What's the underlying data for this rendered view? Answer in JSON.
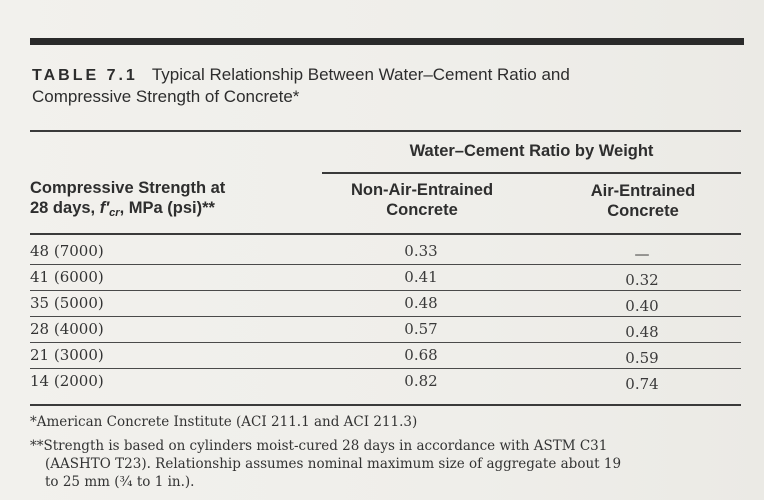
{
  "table": {
    "number": "TABLE 7.1",
    "title_line1": "Typical Relationship Between Water–Cement Ratio and",
    "title_line2": "Compressive Strength of Concrete*",
    "group_header": "Water–Cement Ratio by Weight",
    "col1_header_line1": "Compressive Strength at",
    "col1_header_line2_prefix": "28 days, ",
    "col1_header_f": "f′",
    "col1_header_sub": "cr",
    "col1_header_line2_suffix": ", MPa (psi)**",
    "col2_header_line1": "Non-Air-Entrained",
    "col2_header_line2": "Concrete",
    "col3_header_line1": "Air-Entrained",
    "col3_header_line2": "Concrete",
    "rows": [
      {
        "strength": "48 (7000)",
        "non_air": "0.33",
        "air": "—"
      },
      {
        "strength": "41 (6000)",
        "non_air": "0.41",
        "air": "0.32"
      },
      {
        "strength": "35 (5000)",
        "non_air": "0.48",
        "air": "0.40"
      },
      {
        "strength": "28 (4000)",
        "non_air": "0.57",
        "air": "0.48"
      },
      {
        "strength": "21 (3000)",
        "non_air": "0.68",
        "air": "0.59"
      },
      {
        "strength": "14 (2000)",
        "non_air": "0.82",
        "air": "0.74"
      }
    ]
  },
  "footnotes": {
    "note1": "*American Concrete Institute (ACI 211.1 and ACI 211.3)",
    "note2_line1": "**Strength is based on cylinders moist-cured 28 days in accordance with ASTM C31",
    "note2_line2": "(AASHTO T23). Relationship assumes nominal maximum size of aggregate about 19",
    "note2_line3": "to 25 mm (³⁄₄ to 1 in.)."
  }
}
